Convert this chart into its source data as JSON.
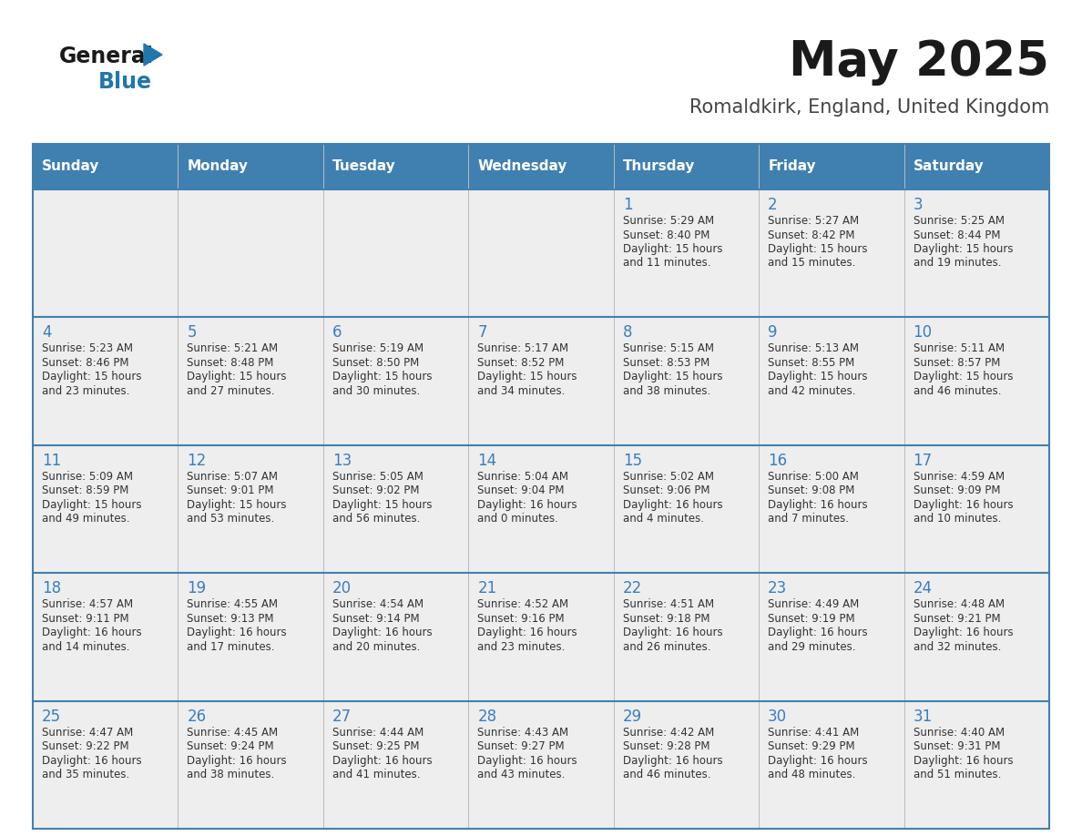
{
  "title": "May 2025",
  "subtitle": "Romaldkirk, England, United Kingdom",
  "header_color": "#4080B0",
  "header_text_color": "#FFFFFF",
  "day_names": [
    "Sunday",
    "Monday",
    "Tuesday",
    "Wednesday",
    "Thursday",
    "Friday",
    "Saturday"
  ],
  "cell_bg_color": "#EEEEEE",
  "grid_line_color": "#4080B0",
  "date_text_color": "#3A7EBF",
  "info_text_color": "#333333",
  "background_color": "#FFFFFF",
  "days": [
    {
      "day": 1,
      "col": 4,
      "row": 0,
      "sunrise": "5:29 AM",
      "sunset": "8:40 PM",
      "daylight_h": "15 hours",
      "daylight_m": "and 11 minutes."
    },
    {
      "day": 2,
      "col": 5,
      "row": 0,
      "sunrise": "5:27 AM",
      "sunset": "8:42 PM",
      "daylight_h": "15 hours",
      "daylight_m": "and 15 minutes."
    },
    {
      "day": 3,
      "col": 6,
      "row": 0,
      "sunrise": "5:25 AM",
      "sunset": "8:44 PM",
      "daylight_h": "15 hours",
      "daylight_m": "and 19 minutes."
    },
    {
      "day": 4,
      "col": 0,
      "row": 1,
      "sunrise": "5:23 AM",
      "sunset": "8:46 PM",
      "daylight_h": "15 hours",
      "daylight_m": "and 23 minutes."
    },
    {
      "day": 5,
      "col": 1,
      "row": 1,
      "sunrise": "5:21 AM",
      "sunset": "8:48 PM",
      "daylight_h": "15 hours",
      "daylight_m": "and 27 minutes."
    },
    {
      "day": 6,
      "col": 2,
      "row": 1,
      "sunrise": "5:19 AM",
      "sunset": "8:50 PM",
      "daylight_h": "15 hours",
      "daylight_m": "and 30 minutes."
    },
    {
      "day": 7,
      "col": 3,
      "row": 1,
      "sunrise": "5:17 AM",
      "sunset": "8:52 PM",
      "daylight_h": "15 hours",
      "daylight_m": "and 34 minutes."
    },
    {
      "day": 8,
      "col": 4,
      "row": 1,
      "sunrise": "5:15 AM",
      "sunset": "8:53 PM",
      "daylight_h": "15 hours",
      "daylight_m": "and 38 minutes."
    },
    {
      "day": 9,
      "col": 5,
      "row": 1,
      "sunrise": "5:13 AM",
      "sunset": "8:55 PM",
      "daylight_h": "15 hours",
      "daylight_m": "and 42 minutes."
    },
    {
      "day": 10,
      "col": 6,
      "row": 1,
      "sunrise": "5:11 AM",
      "sunset": "8:57 PM",
      "daylight_h": "15 hours",
      "daylight_m": "and 46 minutes."
    },
    {
      "day": 11,
      "col": 0,
      "row": 2,
      "sunrise": "5:09 AM",
      "sunset": "8:59 PM",
      "daylight_h": "15 hours",
      "daylight_m": "and 49 minutes."
    },
    {
      "day": 12,
      "col": 1,
      "row": 2,
      "sunrise": "5:07 AM",
      "sunset": "9:01 PM",
      "daylight_h": "15 hours",
      "daylight_m": "and 53 minutes."
    },
    {
      "day": 13,
      "col": 2,
      "row": 2,
      "sunrise": "5:05 AM",
      "sunset": "9:02 PM",
      "daylight_h": "15 hours",
      "daylight_m": "and 56 minutes."
    },
    {
      "day": 14,
      "col": 3,
      "row": 2,
      "sunrise": "5:04 AM",
      "sunset": "9:04 PM",
      "daylight_h": "16 hours",
      "daylight_m": "and 0 minutes."
    },
    {
      "day": 15,
      "col": 4,
      "row": 2,
      "sunrise": "5:02 AM",
      "sunset": "9:06 PM",
      "daylight_h": "16 hours",
      "daylight_m": "and 4 minutes."
    },
    {
      "day": 16,
      "col": 5,
      "row": 2,
      "sunrise": "5:00 AM",
      "sunset": "9:08 PM",
      "daylight_h": "16 hours",
      "daylight_m": "and 7 minutes."
    },
    {
      "day": 17,
      "col": 6,
      "row": 2,
      "sunrise": "4:59 AM",
      "sunset": "9:09 PM",
      "daylight_h": "16 hours",
      "daylight_m": "and 10 minutes."
    },
    {
      "day": 18,
      "col": 0,
      "row": 3,
      "sunrise": "4:57 AM",
      "sunset": "9:11 PM",
      "daylight_h": "16 hours",
      "daylight_m": "and 14 minutes."
    },
    {
      "day": 19,
      "col": 1,
      "row": 3,
      "sunrise": "4:55 AM",
      "sunset": "9:13 PM",
      "daylight_h": "16 hours",
      "daylight_m": "and 17 minutes."
    },
    {
      "day": 20,
      "col": 2,
      "row": 3,
      "sunrise": "4:54 AM",
      "sunset": "9:14 PM",
      "daylight_h": "16 hours",
      "daylight_m": "and 20 minutes."
    },
    {
      "day": 21,
      "col": 3,
      "row": 3,
      "sunrise": "4:52 AM",
      "sunset": "9:16 PM",
      "daylight_h": "16 hours",
      "daylight_m": "and 23 minutes."
    },
    {
      "day": 22,
      "col": 4,
      "row": 3,
      "sunrise": "4:51 AM",
      "sunset": "9:18 PM",
      "daylight_h": "16 hours",
      "daylight_m": "and 26 minutes."
    },
    {
      "day": 23,
      "col": 5,
      "row": 3,
      "sunrise": "4:49 AM",
      "sunset": "9:19 PM",
      "daylight_h": "16 hours",
      "daylight_m": "and 29 minutes."
    },
    {
      "day": 24,
      "col": 6,
      "row": 3,
      "sunrise": "4:48 AM",
      "sunset": "9:21 PM",
      "daylight_h": "16 hours",
      "daylight_m": "and 32 minutes."
    },
    {
      "day": 25,
      "col": 0,
      "row": 4,
      "sunrise": "4:47 AM",
      "sunset": "9:22 PM",
      "daylight_h": "16 hours",
      "daylight_m": "and 35 minutes."
    },
    {
      "day": 26,
      "col": 1,
      "row": 4,
      "sunrise": "4:45 AM",
      "sunset": "9:24 PM",
      "daylight_h": "16 hours",
      "daylight_m": "and 38 minutes."
    },
    {
      "day": 27,
      "col": 2,
      "row": 4,
      "sunrise": "4:44 AM",
      "sunset": "9:25 PM",
      "daylight_h": "16 hours",
      "daylight_m": "and 41 minutes."
    },
    {
      "day": 28,
      "col": 3,
      "row": 4,
      "sunrise": "4:43 AM",
      "sunset": "9:27 PM",
      "daylight_h": "16 hours",
      "daylight_m": "and 43 minutes."
    },
    {
      "day": 29,
      "col": 4,
      "row": 4,
      "sunrise": "4:42 AM",
      "sunset": "9:28 PM",
      "daylight_h": "16 hours",
      "daylight_m": "and 46 minutes."
    },
    {
      "day": 30,
      "col": 5,
      "row": 4,
      "sunrise": "4:41 AM",
      "sunset": "9:29 PM",
      "daylight_h": "16 hours",
      "daylight_m": "and 48 minutes."
    },
    {
      "day": 31,
      "col": 6,
      "row": 4,
      "sunrise": "4:40 AM",
      "sunset": "9:31 PM",
      "daylight_h": "16 hours",
      "daylight_m": "and 51 minutes."
    }
  ]
}
